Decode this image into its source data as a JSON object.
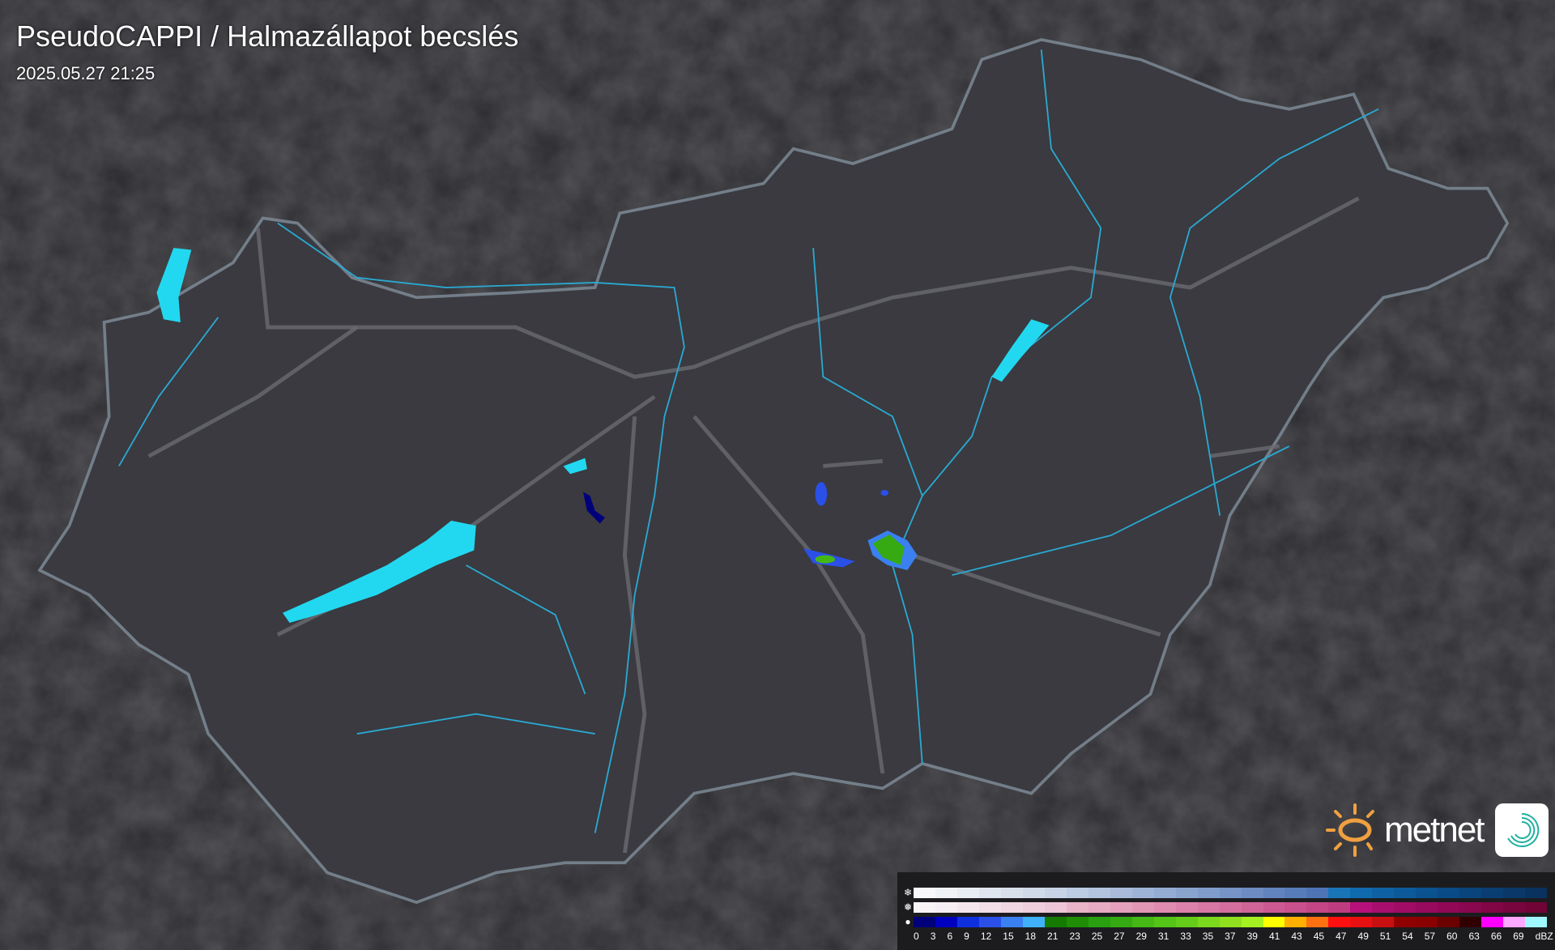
{
  "header": {
    "title": "PseudoCAPPI  / Halmazállapot becslés",
    "timestamp": "2025.05.27 21:25"
  },
  "logo": {
    "text": "metnet"
  },
  "colors": {
    "country_fill": "#3a3a40",
    "border": "#8a9aa6",
    "rivers": "#2aa8d0",
    "lakes": "#22d8f0",
    "roads": "#6a6a70"
  },
  "legend": {
    "rows": [
      {
        "icon": "snowflake-icon",
        "glyph": "❄",
        "colors": [
          "#f8f8fa",
          "#f0f2f6",
          "#e8ecf3",
          "#e0e6f0",
          "#d8e0ec",
          "#d0dae8",
          "#c8d4e6",
          "#bccce2",
          "#b2c4de",
          "#a8bcda",
          "#9eb4d6",
          "#94acd2",
          "#8aa4ce",
          "#809ccb",
          "#7694c6",
          "#6c8cc2",
          "#6284be",
          "#587cba",
          "#4e74b6",
          "#1a74b8",
          "#106aae",
          "#0e62a4",
          "#0c5a9a",
          "#0a5290",
          "#0a4a86",
          "#0a447c",
          "#0a3e72",
          "#0a3868",
          "#0a325e"
        ]
      },
      {
        "icon": "sleet-icon",
        "glyph": "❅",
        "colors": [
          "#f8f4f6",
          "#f6eef2",
          "#f4e6ec",
          "#f2dee6",
          "#f0d6e0",
          "#eecedb",
          "#ecc6d6",
          "#e8b4c8",
          "#e6aac2",
          "#e4a0bc",
          "#e296b6",
          "#e08cb0",
          "#dc82aa",
          "#d878a4",
          "#d46e9e",
          "#d06498",
          "#cc5a92",
          "#c8508c",
          "#c44686",
          "#c03c80",
          "#b8107a",
          "#a80e6e",
          "#a00c66",
          "#980a5e",
          "#900856",
          "#88074e",
          "#800646",
          "#78053e",
          "#700436"
        ]
      },
      {
        "icon": "raindrop-icon",
        "glyph": "💧",
        "colors": [
          "#00007a",
          "#0000c0",
          "#1030e0",
          "#2a50e8",
          "#3a80f0",
          "#40b0f8",
          "#157a00",
          "#1f8e05",
          "#28a010",
          "#35aa12",
          "#45b815",
          "#55c418",
          "#65cc1a",
          "#7cd81c",
          "#90e020",
          "#a5f020",
          "#ffff00",
          "#ffb000",
          "#ff7010",
          "#ff1010",
          "#e81010",
          "#c81010",
          "#900000",
          "#8a0000",
          "#6a0000",
          "#300000",
          "#ff00ff",
          "#ffa8ff",
          "#a0f8ff"
        ]
      }
    ],
    "labels": [
      "0",
      "3",
      "6",
      "9",
      "12",
      "15",
      "18",
      "21",
      "23",
      "25",
      "27",
      "29",
      "31",
      "33",
      "35",
      "37",
      "39",
      "41",
      "43",
      "45",
      "47",
      "49",
      "51",
      "54",
      "57",
      "60",
      "63",
      "66",
      "69",
      "dBZ"
    ]
  }
}
